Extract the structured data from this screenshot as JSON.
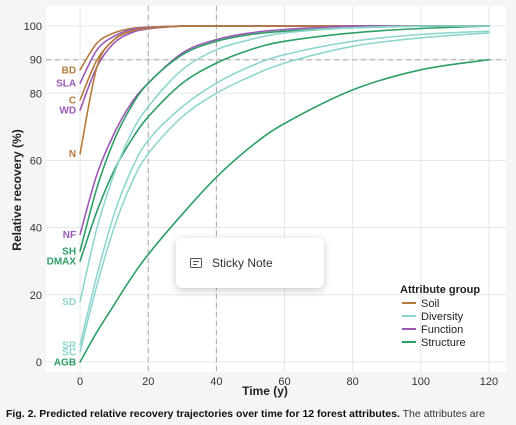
{
  "chart_data": {
    "type": "line",
    "xlabel": "Time (y)",
    "ylabel": "Relative recovery (%)",
    "xlim": [
      -10,
      125
    ],
    "ylim": [
      -3,
      106
    ],
    "x_ticks": [
      0,
      20,
      40,
      60,
      80,
      100,
      120
    ],
    "y_ticks": [
      0,
      20,
      40,
      60,
      80,
      90,
      100
    ],
    "reference_lines": {
      "x": [
        20,
        40
      ],
      "y": [
        90
      ]
    },
    "grid": true,
    "legend": {
      "title": "Attribute group",
      "placement": "bottom-right",
      "entries": [
        {
          "name": "Soil",
          "color": "#b57a3c"
        },
        {
          "name": "Diversity",
          "color": "#8fd6cf"
        },
        {
          "name": "Function",
          "color": "#9b59b6"
        },
        {
          "name": "Structure",
          "color": "#2e9e67"
        }
      ]
    },
    "x": [
      0,
      5,
      10,
      15,
      20,
      30,
      40,
      50,
      60,
      80,
      100,
      120
    ],
    "series": [
      {
        "label": "BD",
        "group": "Soil",
        "values": [
          87,
          95,
          98,
          99.3,
          99.7,
          100,
          100,
          100,
          100,
          100,
          100,
          100
        ]
      },
      {
        "label": "SLA",
        "group": "Function",
        "values": [
          83,
          93,
          97,
          99,
          99.6,
          100,
          100,
          100,
          100,
          100,
          100,
          100
        ]
      },
      {
        "label": "C",
        "group": "Soil",
        "values": [
          78,
          90,
          96,
          98.5,
          99.3,
          100,
          100,
          100,
          100,
          100,
          100,
          100
        ]
      },
      {
        "label": "WD",
        "group": "Function",
        "values": [
          75,
          88,
          95,
          98,
          99.2,
          100,
          100,
          100,
          100,
          100,
          100,
          100
        ]
      },
      {
        "label": "N",
        "group": "Soil",
        "values": [
          62,
          88,
          96,
          98.5,
          99.4,
          100,
          100,
          100,
          100,
          100,
          100,
          100
        ]
      },
      {
        "label": "NF",
        "group": "Function",
        "values": [
          38,
          56,
          68,
          77,
          83,
          92,
          96,
          98,
          99,
          100,
          100,
          100
        ]
      },
      {
        "label": "SH",
        "group": "Structure",
        "values": [
          33,
          52,
          66,
          76,
          83,
          91.5,
          95.5,
          97.5,
          98.5,
          99.5,
          100,
          100
        ]
      },
      {
        "label": "DMAX",
        "group": "Structure",
        "values": [
          30,
          45,
          57,
          66,
          73,
          83,
          89,
          93,
          95.5,
          98,
          99.3,
          100
        ]
      },
      {
        "label": "SD",
        "group": "Diversity",
        "values": [
          18,
          40,
          56,
          68,
          76,
          87,
          93,
          96,
          98,
          99.5,
          100,
          100
        ]
      },
      {
        "label": "SR",
        "group": "Diversity",
        "values": [
          5,
          26,
          44,
          57,
          66,
          76,
          83,
          88,
          91.5,
          95.5,
          97.5,
          98.5
        ]
      },
      {
        "label": "SC",
        "group": "Diversity",
        "values": [
          3,
          23,
          40,
          53,
          62,
          73,
          80,
          85,
          89,
          94,
          96.5,
          98
        ]
      },
      {
        "label": "AGB",
        "group": "Structure",
        "values": [
          0,
          9,
          17,
          25,
          32,
          44,
          55,
          64,
          71,
          81,
          87,
          90
        ]
      }
    ]
  },
  "sticky_note": {
    "label": "Sticky Note"
  },
  "caption": {
    "bold": "Fig. 2. Predicted relative recovery trajectories over time for 12 forest attributes.",
    "rest": " The attributes are"
  }
}
